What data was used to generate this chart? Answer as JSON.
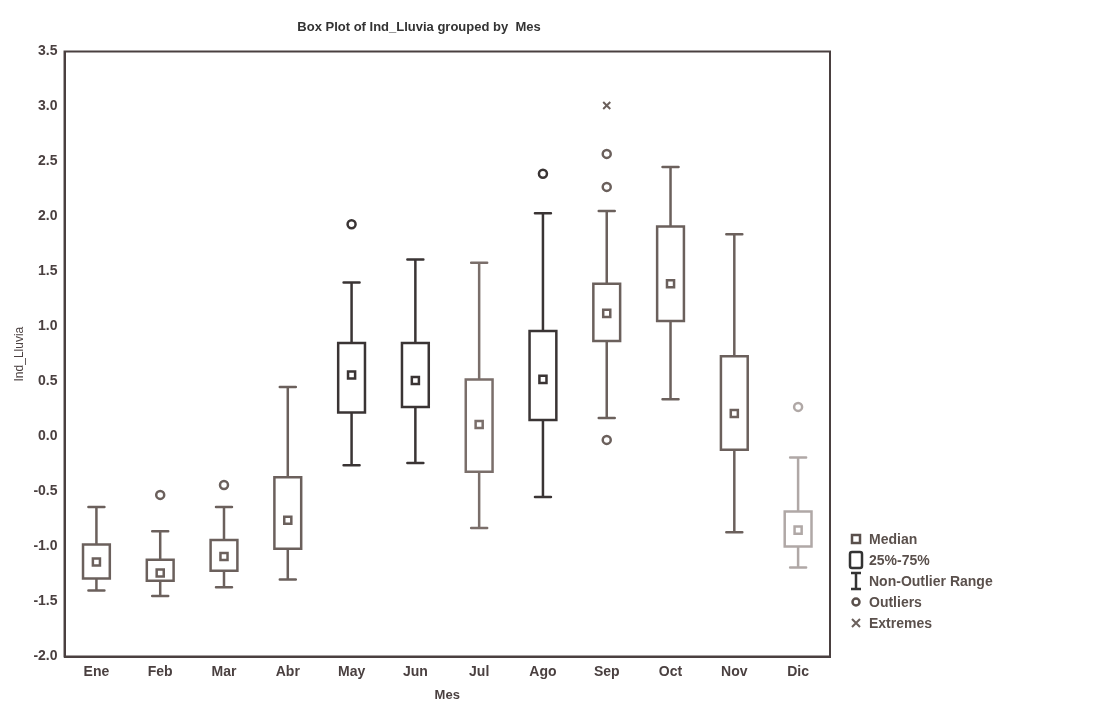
{
  "chart_data": {
    "type": "box",
    "title": "Box Plot of Ind_Lluvia grouped by  Mes",
    "xlabel": "Mes",
    "ylabel": "Ind_Lluvia",
    "categories": [
      "Ene",
      "Feb",
      "Mar",
      "Abr",
      "May",
      "Jun",
      "Jul",
      "Ago",
      "Sep",
      "Oct",
      "Nov",
      "Dic"
    ],
    "ylim": [
      -2,
      3.5
    ],
    "yticks": [
      {
        "value": -2,
        "label": "-2.0"
      },
      {
        "value": -1.5,
        "label": "-1.5"
      },
      {
        "value": -1,
        "label": "-1.0"
      },
      {
        "value": -0.5,
        "label": "-0.5"
      },
      {
        "value": 0,
        "label": "0.0"
      },
      {
        "value": 0.5,
        "label": "0.5"
      },
      {
        "value": 1,
        "label": "1.0"
      },
      {
        "value": 1.5,
        "label": "1.5"
      },
      {
        "value": 2,
        "label": "2.0"
      },
      {
        "value": 2.5,
        "label": "2.5"
      },
      {
        "value": 3,
        "label": "3.0"
      },
      {
        "value": 3.5,
        "label": "3.5"
      }
    ],
    "legend": "bottom right",
    "annotations": [
      "Median",
      "25%-75%",
      "Non-Outlier Range",
      "Outliers"
    ],
    "series": [
      {
        "type": "box",
        "marker": "square",
        "colors": [
          "#6b605c",
          "#6b605c",
          "#6b605c",
          "#6b605c",
          "#3a3434",
          "#3a3434",
          "#7a6e6a",
          "#3a3434",
          "#6b605c",
          "#6b605c",
          "#6b605c",
          "#b0a8a6"
        ],
        "boxes": [
          {
            "low": -1.4,
            "q1": -1.29,
            "median": -1.14,
            "q3": -0.98,
            "high": -0.64
          },
          {
            "low": -1.45,
            "q1": -1.31,
            "median": -1.24,
            "q3": -1.12,
            "high": -0.86,
            "outliers": [
              -0.53
            ]
          },
          {
            "low": -1.37,
            "q1": -1.22,
            "median": -1.09,
            "q3": -0.94,
            "high": -0.64,
            "outliers": [
              -0.44
            ]
          },
          {
            "low": -1.3,
            "q1": -1.02,
            "median": -0.76,
            "q3": -0.37,
            "high": 0.45
          },
          {
            "low": -0.26,
            "q1": 0.22,
            "median": 0.56,
            "q3": 0.85,
            "high": 1.4,
            "outliers": [
              1.93
            ]
          },
          {
            "low": -0.24,
            "q1": 0.27,
            "median": 0.51,
            "q3": 0.85,
            "high": 1.61
          },
          {
            "low": -0.83,
            "q1": -0.32,
            "median": 0.11,
            "q3": 0.52,
            "high": 1.58
          },
          {
            "low": -0.55,
            "q1": 0.15,
            "median": 0.52,
            "q3": 0.96,
            "high": 2.03,
            "outliers": [
              2.39
            ]
          },
          {
            "low": 0.17,
            "q1": 0.87,
            "median": 1.12,
            "q3": 1.39,
            "high": 2.05,
            "outliers": [
              -0.03,
              2.27,
              2.57
            ]
          },
          {
            "low": 0.34,
            "q1": 1.05,
            "median": 1.39,
            "q3": 1.91,
            "high": 2.45
          },
          {
            "low": -0.87,
            "q1": -0.12,
            "median": 0.21,
            "q3": 0.73,
            "high": 1.84
          },
          {
            "low": -1.19,
            "q1": -1.0,
            "median": -0.85,
            "q3": -0.68,
            "high": -0.19,
            "outliers": [
              0.27
            ]
          }
        ]
      },
      {
        "type": "scatter",
        "name": "Extremes",
        "marker": "cross",
        "color": "#6b605c",
        "x": [
          "Sep"
        ],
        "values": [
          3.01
        ]
      }
    ]
  }
}
